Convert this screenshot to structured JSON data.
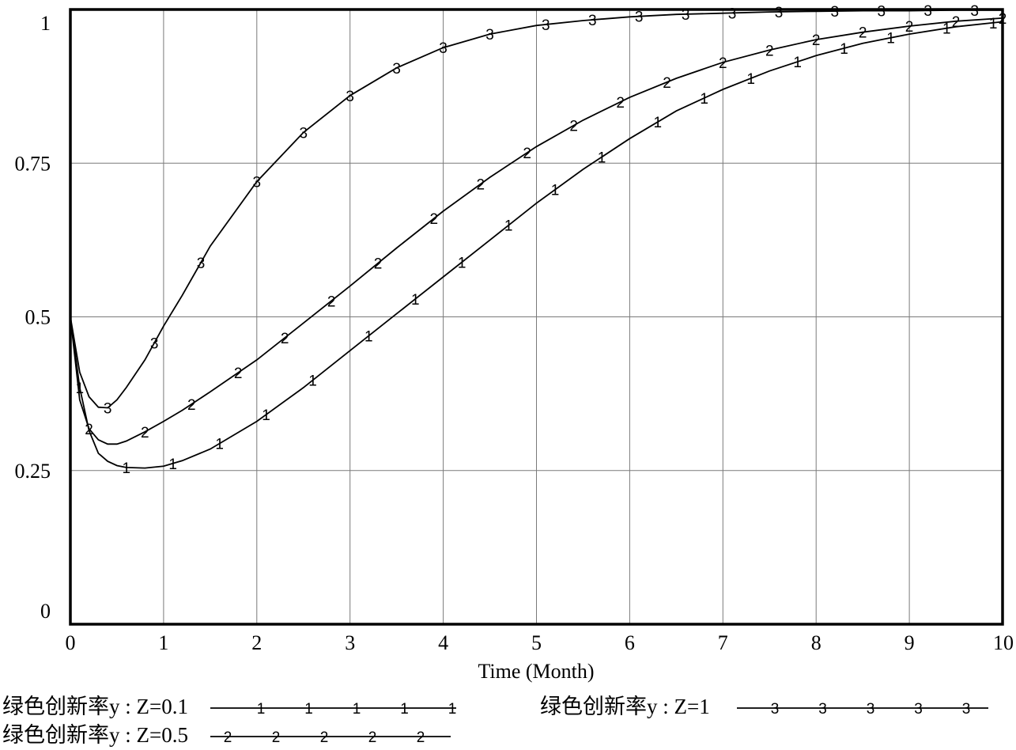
{
  "chart_data": {
    "type": "line",
    "xlabel": "Time (Month)",
    "ylabel": "",
    "xlim": [
      0,
      10
    ],
    "ylim": [
      0,
      1
    ],
    "xticks": [
      "0",
      "1",
      "2",
      "3",
      "4",
      "5",
      "6",
      "7",
      "8",
      "9",
      "10"
    ],
    "yticks": [
      "0",
      "0.25",
      "0.5",
      "0.75",
      "1"
    ],
    "grid": true,
    "legend_position": "bottom",
    "series": [
      {
        "name": "绿色创新率y : Z=0.1",
        "marker": "1",
        "x": [
          0,
          0.1,
          0.2,
          0.3,
          0.4,
          0.5,
          0.6,
          0.8,
          1.0,
          1.2,
          1.5,
          2.0,
          2.5,
          3.0,
          3.5,
          4.0,
          4.5,
          5.0,
          5.5,
          6.0,
          6.5,
          7.0,
          7.5,
          8.0,
          8.5,
          9.0,
          9.5,
          10.0
        ],
        "values": [
          0.5,
          0.385,
          0.315,
          0.278,
          0.265,
          0.258,
          0.255,
          0.254,
          0.257,
          0.266,
          0.285,
          0.33,
          0.385,
          0.445,
          0.505,
          0.565,
          0.625,
          0.685,
          0.74,
          0.79,
          0.835,
          0.87,
          0.9,
          0.925,
          0.945,
          0.96,
          0.972,
          0.98
        ],
        "marker_x": [
          0.1,
          0.6,
          1.1,
          1.6,
          2.1,
          2.6,
          3.2,
          3.7,
          4.2,
          4.7,
          5.2,
          5.7,
          6.3,
          6.8,
          7.3,
          7.8,
          8.3,
          8.8,
          9.4,
          9.9
        ]
      },
      {
        "name": "绿色创新率y : Z=0.5",
        "marker": "2",
        "x": [
          0,
          0.1,
          0.2,
          0.3,
          0.4,
          0.5,
          0.6,
          0.8,
          1.0,
          1.2,
          1.5,
          2.0,
          2.5,
          3.0,
          3.5,
          4.0,
          4.5,
          5.0,
          5.5,
          6.0,
          6.5,
          7.0,
          7.5,
          8.0,
          8.5,
          9.0,
          9.5,
          10.0
        ],
        "values": [
          0.5,
          0.365,
          0.318,
          0.3,
          0.293,
          0.293,
          0.298,
          0.313,
          0.33,
          0.348,
          0.378,
          0.43,
          0.49,
          0.55,
          0.612,
          0.672,
          0.727,
          0.777,
          0.82,
          0.857,
          0.888,
          0.914,
          0.934,
          0.951,
          0.963,
          0.973,
          0.981,
          0.986
        ],
        "marker_x": [
          0.2,
          0.8,
          1.3,
          1.8,
          2.3,
          2.8,
          3.3,
          3.9,
          4.4,
          4.9,
          5.4,
          5.9,
          6.4,
          7.0,
          7.5,
          8.0,
          8.5,
          9.0,
          9.5,
          10.0
        ]
      },
      {
        "name": "绿色创新率y : Z=1",
        "marker": "3",
        "x": [
          0,
          0.1,
          0.2,
          0.3,
          0.4,
          0.5,
          0.6,
          0.8,
          1.0,
          1.2,
          1.5,
          2.0,
          2.5,
          3.0,
          3.5,
          4.0,
          4.5,
          5.0,
          5.5,
          6.0,
          6.5,
          7.0,
          7.5,
          8.0,
          8.5,
          9.0,
          9.5,
          10.0
        ],
        "values": [
          0.5,
          0.41,
          0.37,
          0.353,
          0.352,
          0.365,
          0.385,
          0.43,
          0.485,
          0.535,
          0.615,
          0.72,
          0.8,
          0.86,
          0.905,
          0.938,
          0.96,
          0.974,
          0.982,
          0.988,
          0.992,
          0.994,
          0.996,
          0.997,
          0.998,
          0.998,
          0.999,
          0.999
        ],
        "marker_x": [
          0.4,
          0.9,
          1.4,
          2.0,
          2.5,
          3.0,
          3.5,
          4.0,
          4.5,
          5.1,
          5.6,
          6.1,
          6.6,
          7.1,
          7.6,
          8.2,
          8.7,
          9.2,
          9.7
        ]
      }
    ]
  }
}
